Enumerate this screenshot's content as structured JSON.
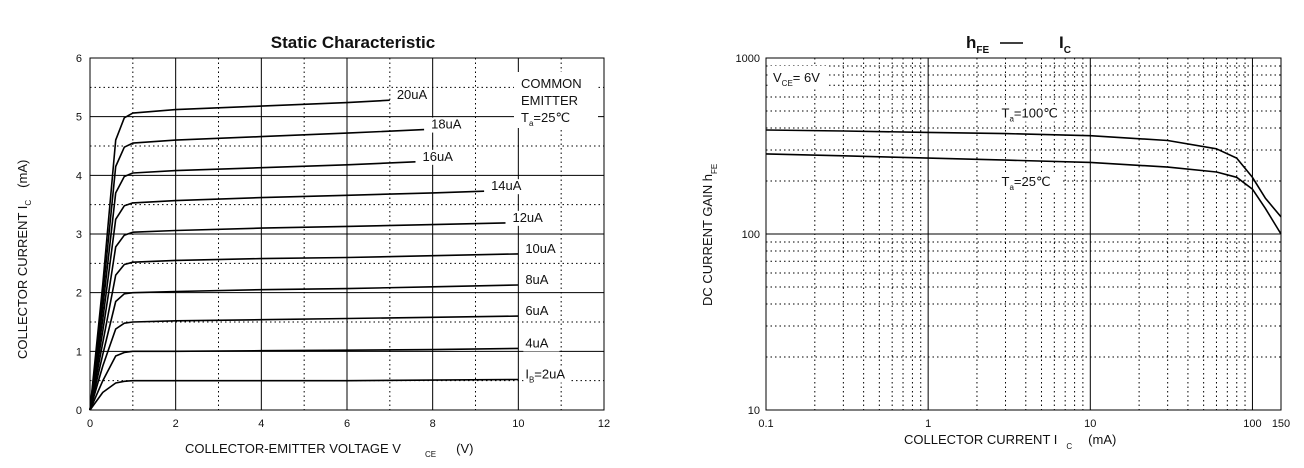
{
  "chart_data": [
    {
      "type": "line",
      "title": "Static Characteristic",
      "xlabel": {
        "main": "COLLECTOR-EMITTER VOLTAGE V",
        "sub": "CE",
        "unit": "(V)"
      },
      "ylabel": {
        "main": "COLLECTOR CURRENT  I",
        "sub": "C",
        "unit": "(mA)"
      },
      "xlim": [
        0,
        12
      ],
      "ylim": [
        0,
        6
      ],
      "x_ticks": [
        "0",
        "2",
        "4",
        "6",
        "8",
        "10",
        "12"
      ],
      "y_ticks": [
        "0",
        "1",
        "2",
        "3",
        "4",
        "5",
        "6"
      ],
      "grid": true,
      "annotation": {
        "line1": "COMMON",
        "line2": "EMITTER",
        "line3_main": "T",
        "line3_sub": "a",
        "line3_rest": "=25℃"
      },
      "series": [
        {
          "name": "Iʙ=2uA",
          "label_main": "I",
          "label_sub": "B",
          "label_rest": "=2uA",
          "x": [
            0,
            0.3,
            0.6,
            0.8,
            1,
            2,
            4,
            6,
            8,
            10
          ],
          "y": [
            0,
            0.3,
            0.46,
            0.49,
            0.5,
            0.5,
            0.5,
            0.5,
            0.51,
            0.52
          ]
        },
        {
          "name": "4uA",
          "label_main": "4uA",
          "x": [
            0,
            0.3,
            0.6,
            0.8,
            1,
            2,
            4,
            6,
            8,
            10
          ],
          "y": [
            0,
            0.5,
            0.92,
            0.98,
            1.0,
            1.0,
            1.01,
            1.02,
            1.03,
            1.05
          ]
        },
        {
          "name": "6uA",
          "label_main": "6uA",
          "x": [
            0,
            0.3,
            0.6,
            0.8,
            1,
            2,
            4,
            6,
            8,
            10
          ],
          "y": [
            0,
            0.75,
            1.38,
            1.48,
            1.5,
            1.52,
            1.54,
            1.56,
            1.58,
            1.6
          ]
        },
        {
          "name": "8uA",
          "label_main": "8uA",
          "x": [
            0,
            0.3,
            0.6,
            0.8,
            1,
            2,
            4,
            6,
            8,
            10
          ],
          "y": [
            0,
            0.95,
            1.85,
            1.98,
            2.0,
            2.02,
            2.05,
            2.07,
            2.1,
            2.13
          ]
        },
        {
          "name": "10uA",
          "label_main": "10uA",
          "x": [
            0,
            0.3,
            0.6,
            0.8,
            1,
            2,
            4,
            6,
            8,
            10
          ],
          "y": [
            0,
            1.15,
            2.3,
            2.48,
            2.52,
            2.55,
            2.58,
            2.6,
            2.63,
            2.66
          ]
        },
        {
          "name": "12uA",
          "label_main": "12uA",
          "x": [
            0,
            0.3,
            0.6,
            0.8,
            1,
            2,
            4,
            6,
            8,
            9.7
          ],
          "y": [
            0,
            1.35,
            2.78,
            2.98,
            3.03,
            3.06,
            3.1,
            3.13,
            3.16,
            3.19
          ]
        },
        {
          "name": "14uA",
          "label_main": "14uA",
          "x": [
            0,
            0.3,
            0.6,
            0.8,
            1,
            2,
            4,
            6,
            8,
            9.2
          ],
          "y": [
            0,
            1.55,
            3.25,
            3.48,
            3.53,
            3.57,
            3.62,
            3.66,
            3.7,
            3.73
          ]
        },
        {
          "name": "16uA",
          "label_main": "16uA",
          "x": [
            0,
            0.3,
            0.6,
            0.8,
            1,
            2,
            4,
            6,
            7.6
          ],
          "y": [
            0,
            1.75,
            3.7,
            3.98,
            4.04,
            4.08,
            4.13,
            4.18,
            4.23
          ]
        },
        {
          "name": "18uA",
          "label_main": "18uA",
          "x": [
            0,
            0.3,
            0.6,
            0.8,
            1,
            2,
            4,
            6,
            7.8
          ],
          "y": [
            0,
            1.95,
            4.15,
            4.48,
            4.55,
            4.6,
            4.66,
            4.72,
            4.78
          ]
        },
        {
          "name": "20uA",
          "label_main": "20uA",
          "x": [
            0,
            0.3,
            0.6,
            0.8,
            1,
            2,
            4,
            6,
            7
          ],
          "y": [
            0,
            2.15,
            4.6,
            4.98,
            5.06,
            5.12,
            5.18,
            5.24,
            5.28
          ]
        }
      ]
    },
    {
      "type": "line",
      "title": {
        "p1_main": "h",
        "p1_sub": "FE",
        "p2_main": "I",
        "p2_sub": "C"
      },
      "xlabel": {
        "main": "COLLECTOR CURRENT I",
        "sub": "C",
        "unit": "(mA)"
      },
      "ylabel": {
        "main": "DC CURRENT GAIN  h",
        "sub": "FE"
      },
      "x_scale": "log",
      "y_scale": "log",
      "xlim": [
        0.1,
        150
      ],
      "ylim": [
        10,
        1000
      ],
      "x_ticks": [
        "0.1",
        "1",
        "10",
        "100",
        "150"
      ],
      "y_ticks": [
        "10",
        "100",
        "1000"
      ],
      "grid": true,
      "annotation": {
        "main": "V",
        "sub": "CE",
        "rest": "= 6V"
      },
      "series": [
        {
          "name": "Tₐ=100℃",
          "label_main": "T",
          "label_sub": "a",
          "label_rest": "=100℃",
          "x": [
            0.1,
            0.3,
            1,
            3,
            10,
            30,
            60,
            80,
            100,
            120,
            150
          ],
          "y": [
            390,
            385,
            378,
            372,
            362,
            340,
            305,
            270,
            210,
            160,
            125
          ]
        },
        {
          "name": "Tₐ=25℃",
          "label_main": "T",
          "label_sub": "a",
          "label_rest": "=25℃",
          "x": [
            0.1,
            0.3,
            1,
            3,
            10,
            30,
            60,
            80,
            100,
            120,
            150
          ],
          "y": [
            285,
            278,
            270,
            263,
            255,
            240,
            225,
            210,
            180,
            140,
            100
          ]
        }
      ]
    }
  ]
}
